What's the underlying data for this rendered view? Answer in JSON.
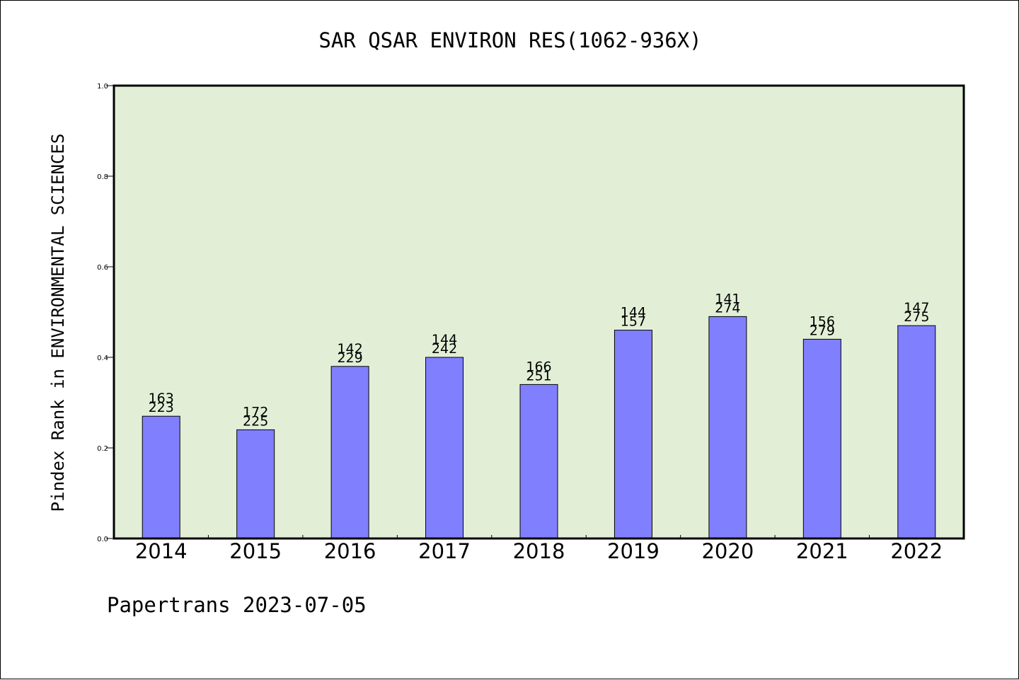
{
  "chart_data": {
    "type": "bar",
    "title": "SAR QSAR ENVIRON RES(1062-936X)",
    "ylabel": "Pindex Rank in ENVIRONMENTAL SCIENCES",
    "xlabel": "",
    "footer": "Papertrans 2023-07-05",
    "ylim": [
      0,
      1.0
    ],
    "yticks": [
      "0.0",
      "0.2",
      "0.4",
      "0.6",
      "0.8",
      "1.0"
    ],
    "categories": [
      "2014",
      "2015",
      "2016",
      "2017",
      "2018",
      "2019",
      "2020",
      "2021",
      "2022"
    ],
    "values": [
      0.27,
      0.24,
      0.38,
      0.4,
      0.34,
      0.46,
      0.49,
      0.44,
      0.47
    ],
    "ranks": [
      "163",
      "172",
      "142",
      "144",
      "166",
      "144",
      "141",
      "156",
      "147"
    ],
    "totals": [
      "223",
      "225",
      "229",
      "242",
      "251",
      "157",
      "274",
      "279",
      "275"
    ],
    "grid": false,
    "legend": "none",
    "colors": {
      "plot_background": "#e2efd6",
      "bar_fill": "#8080ff",
      "bar_stroke": "#000000",
      "axis": "#000000"
    }
  }
}
